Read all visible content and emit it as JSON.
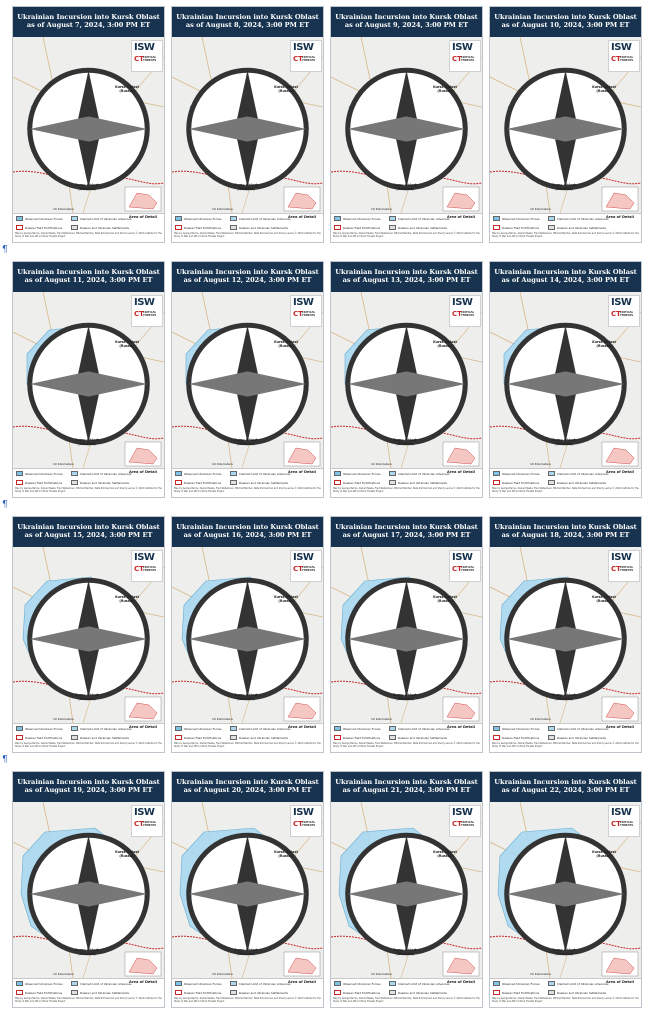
{
  "header_prefix": "Ukrainian Incursion into Kursk Oblast",
  "maps": [
    {
      "date_line": "as of August 7, 2024, 3:00 PM ET"
    },
    {
      "date_line": "as of August 8, 2024, 3:00 PM ET"
    },
    {
      "date_line": "as of August 9, 2024, 3:00 PM ET"
    },
    {
      "date_line": "as of August 10, 2024, 3:00 PM ET"
    },
    {
      "date_line": "as of August 11, 2024, 3:00 PM ET"
    },
    {
      "date_line": "as of August 12, 2024, 3:00 PM ET"
    },
    {
      "date_line": "as of August 13, 2024, 3:00 PM ET"
    },
    {
      "date_line": "as of August 14, 2024, 3:00 PM ET"
    },
    {
      "date_line": "as of August 15, 2024, 3:00 PM ET"
    },
    {
      "date_line": "as of August 16, 2024, 3:00 PM ET"
    },
    {
      "date_line": "as of August 17, 2024, 3:00 PM ET"
    },
    {
      "date_line": "as of August 18, 2024, 3:00 PM ET"
    },
    {
      "date_line": "as of August 19, 2024, 3:00 PM ET"
    },
    {
      "date_line": "as of August 20, 2024, 3:00 PM ET"
    },
    {
      "date_line": "as of August 21, 2024, 3:00 PM ET"
    },
    {
      "date_line": "as of August 22, 2024, 3:00 PM ET"
    }
  ],
  "logo": {
    "isw": "ISW",
    "ct": "CT",
    "ct_text": "CRITICAL THREATS"
  },
  "places": {
    "kursk": "Kursk Oblast (Russia)",
    "sumy": "Sumy Oblast (Ukraine)"
  },
  "legend": {
    "observed": "Observed Ukrainian Forces",
    "claimed": "Claimed Limit of Ukrainian Advances",
    "fortifications": "Russian Field Fortifications",
    "russian_forces": "Russian and Ukrainian Settlements",
    "area_detail": "Area of Detail"
  },
  "scale": "10 Kilometers",
  "footer": "Map by George Barros, Daniel Mealie, Fred Wellenboer, Mitchell Belcher, Nate Zimmerman and Sherry Levine © 2024 Institute for the Study of War and AEI's Critical Threats Project",
  "para_mark": "¶",
  "colors": {
    "header": "#17334f",
    "claimed_fill": "#a9d8f0",
    "observed_fill": "#7fc4e8",
    "border": "#c62828"
  }
}
